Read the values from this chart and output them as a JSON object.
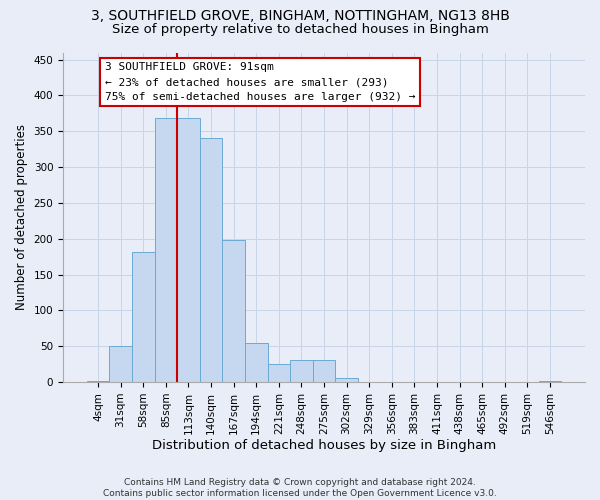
{
  "title_line1": "3, SOUTHFIELD GROVE, BINGHAM, NOTTINGHAM, NG13 8HB",
  "title_line2": "Size of property relative to detached houses in Bingham",
  "xlabel": "Distribution of detached houses by size in Bingham",
  "ylabel": "Number of detached properties",
  "categories": [
    "4sqm",
    "31sqm",
    "58sqm",
    "85sqm",
    "113sqm",
    "140sqm",
    "167sqm",
    "194sqm",
    "221sqm",
    "248sqm",
    "275sqm",
    "302sqm",
    "329sqm",
    "356sqm",
    "383sqm",
    "411sqm",
    "438sqm",
    "465sqm",
    "492sqm",
    "519sqm",
    "546sqm"
  ],
  "bar_heights": [
    2,
    50,
    181,
    368,
    368,
    340,
    199,
    54,
    25,
    31,
    31,
    6,
    0,
    0,
    0,
    0,
    0,
    0,
    0,
    0,
    2
  ],
  "bar_color": "#c5d8ef",
  "bar_edge_color": "#6aaad4",
  "grid_color": "#c8d4e8",
  "background_color": "#e8edf8",
  "red_line_color": "#cc0000",
  "red_line_x": 3.5,
  "annotation_text": "3 SOUTHFIELD GROVE: 91sqm\n← 23% of detached houses are smaller (293)\n75% of semi-detached houses are larger (932) →",
  "annotation_box_facecolor": "#ffffff",
  "annotation_box_edgecolor": "#cc0000",
  "ylim": [
    0,
    460
  ],
  "yticks": [
    0,
    50,
    100,
    150,
    200,
    250,
    300,
    350,
    400,
    450
  ],
  "title_fontsize": 10,
  "subtitle_fontsize": 9.5,
  "xlabel_fontsize": 9.5,
  "ylabel_fontsize": 8.5,
  "tick_fontsize": 7.5,
  "annot_fontsize": 8,
  "footnote": "Contains HM Land Registry data © Crown copyright and database right 2024.\nContains public sector information licensed under the Open Government Licence v3.0.",
  "footnote_fontsize": 6.5
}
